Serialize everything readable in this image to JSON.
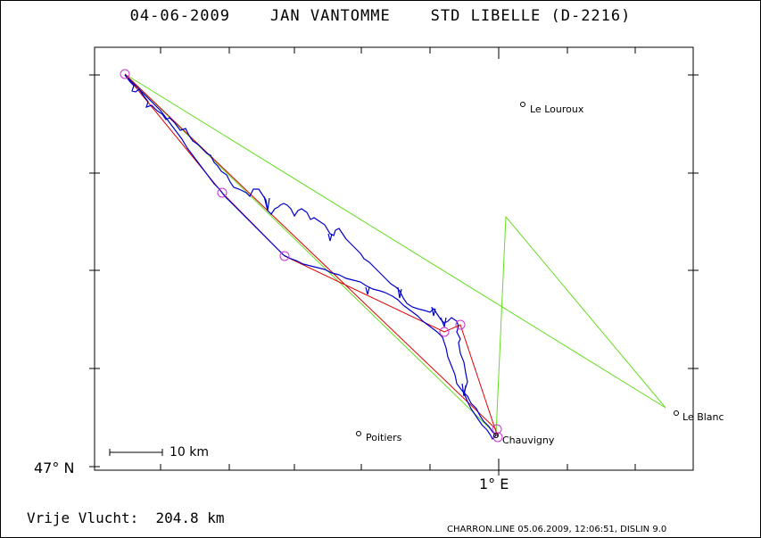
{
  "header": {
    "title": "04-06-2009    JAN VANTOMME    STD LIBELLE (D-2216)"
  },
  "map": {
    "lat_label": "47° N",
    "lon_label": "1° E",
    "scale_label": "10 km",
    "places": [
      {
        "name": "Le Louroux"
      },
      {
        "name": "Le Blanc"
      },
      {
        "name": "Poitiers"
      },
      {
        "name": "Chauvigny"
      }
    ],
    "colors": {
      "track": "#0000cc",
      "task": "#dd0000",
      "optimized": "#66dd22",
      "turnpoints": "#cc33cc"
    }
  },
  "footer": {
    "distance_label": "Vrije Vlucht:",
    "distance_value": "204.8 km",
    "program_info": "CHARRON.LINE 05.06.2009, 12:06:51, DISLIN 9.0"
  }
}
